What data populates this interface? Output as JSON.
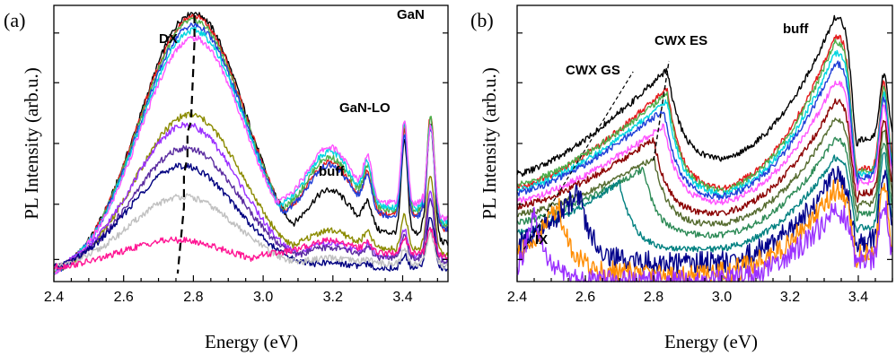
{
  "chart_data": [
    {
      "panel_label": "(a)",
      "type": "line",
      "xlabel": "Energy (eV)",
      "ylabel": "PL Intensity (arb.u.)",
      "yscale": "log",
      "xlim": [
        2.4,
        3.53
      ],
      "xticks": [
        2.4,
        2.6,
        2.8,
        3.0,
        3.2,
        3.4
      ],
      "xtick_labels": [
        "2.4",
        "2.6",
        "2.8",
        "3.0",
        "3.2",
        "3.4"
      ],
      "annotations": [
        "DX",
        "GaN",
        "GaN-LO",
        "buff"
      ],
      "series": [
        {
          "color": "#000000",
          "dx_peak": 2.8,
          "dx_level": 1.0,
          "plateau": 0.18,
          "buff": 0.16,
          "lo": 0.34,
          "gan": 0.44
        },
        {
          "color": "#e41a1c",
          "dx_peak": 2.8,
          "dx_level": 0.985,
          "plateau": 0.245,
          "buff": 0.195,
          "lo": 0.32,
          "gan": 0.42
        },
        {
          "color": "#4daf4a",
          "dx_peak": 2.8,
          "dx_level": 0.97,
          "plateau": 0.26,
          "buff": 0.2,
          "lo": 0.33,
          "gan": 0.4
        },
        {
          "color": "#1f3fd8",
          "dx_peak": 2.8,
          "dx_level": 0.95,
          "plateau": 0.24,
          "buff": 0.19,
          "lo": 0.3,
          "gan": 0.38
        },
        {
          "color": "#00d5e0",
          "dx_peak": 2.8,
          "dx_level": 0.93,
          "plateau": 0.27,
          "buff": 0.21,
          "lo": 0.32,
          "gan": 0.36
        },
        {
          "color": "#ff55ff",
          "dx_peak": 2.8,
          "dx_level": 0.9,
          "plateau": 0.285,
          "buff": 0.21,
          "lo": 0.31,
          "gan": 0.34
        },
        {
          "color": "#8b8b00",
          "dx_peak": 2.79,
          "dx_level": 0.6,
          "plateau": 0.1,
          "buff": 0.07,
          "lo": 0.13,
          "gan": 0.3
        },
        {
          "color": "#9b30ff",
          "dx_peak": 2.78,
          "dx_level": 0.56,
          "plateau": 0.07,
          "buff": 0.05,
          "lo": 0.1,
          "gan": 0.26
        },
        {
          "color": "#5a2ca0",
          "dx_peak": 2.78,
          "dx_level": 0.47,
          "plateau": 0.06,
          "buff": 0.04,
          "lo": 0.08,
          "gan": 0.23
        },
        {
          "color": "#000080",
          "dx_peak": 2.77,
          "dx_level": 0.4,
          "plateau": 0.02,
          "buff": 0.02,
          "lo": 0.05,
          "gan": 0.2
        },
        {
          "color": "#c0c0c0",
          "dx_peak": 2.77,
          "dx_level": 0.28,
          "plateau": 0.03,
          "buff": 0.02,
          "lo": 0.05,
          "gan": 0.12
        },
        {
          "color": "#ff1493",
          "dx_peak": 2.75,
          "dx_level": 0.11,
          "plateau": 0.06,
          "buff": 0.05,
          "lo": 0.06,
          "gan": 0.1
        }
      ]
    },
    {
      "panel_label": "(b)",
      "type": "line",
      "xlabel": "Energy (eV)",
      "ylabel": "PL Intensity (arb.u.)",
      "yscale": "log",
      "xlim": [
        2.4,
        3.5
      ],
      "xticks": [
        2.4,
        2.6,
        2.8,
        3.0,
        3.2,
        3.4
      ],
      "xtick_labels": [
        "2.4",
        "2.6",
        "2.8",
        "3.0",
        "3.2",
        "3.4"
      ],
      "annotations": [
        "CWX ES",
        "CWX GS",
        "buff",
        "IX"
      ],
      "series": [
        {
          "color": "#000000",
          "es_peak": 2.84,
          "es_level": 0.79,
          "base": 0.4,
          "dip": 0.45,
          "buff": 0.98,
          "gan": 0.77
        },
        {
          "color": "#e41a1c",
          "es_peak": 2.84,
          "es_level": 0.72,
          "base": 0.35,
          "dip": 0.34,
          "buff": 0.91,
          "gan": 0.74
        },
        {
          "color": "#4daf4a",
          "es_peak": 2.84,
          "es_level": 0.7,
          "base": 0.36,
          "dip": 0.33,
          "buff": 0.89,
          "gan": 0.72
        },
        {
          "color": "#00d5e0",
          "es_peak": 2.84,
          "es_level": 0.67,
          "base": 0.34,
          "dip": 0.32,
          "buff": 0.85,
          "gan": 0.7
        },
        {
          "color": "#1f3fd8",
          "es_peak": 2.83,
          "es_level": 0.64,
          "base": 0.33,
          "dip": 0.31,
          "buff": 0.81,
          "gan": 0.68
        },
        {
          "color": "#ff55ff",
          "es_peak": 2.83,
          "es_level": 0.58,
          "base": 0.3,
          "dip": 0.29,
          "buff": 0.74,
          "gan": 0.65
        },
        {
          "color": "#8b0000",
          "es_peak": 2.8,
          "es_level": 0.53,
          "base": 0.28,
          "dip": 0.25,
          "buff": 0.67,
          "gan": 0.6
        },
        {
          "color": "#556b2f",
          "es_peak": 2.8,
          "es_level": 0.46,
          "base": 0.25,
          "dip": 0.21,
          "buff": 0.6,
          "gan": 0.57
        },
        {
          "color": "#2e8b57",
          "es_peak": 2.77,
          "es_level": 0.42,
          "base": 0.22,
          "dip": 0.17,
          "buff": 0.53,
          "gan": 0.52
        },
        {
          "color": "#008080",
          "es_peak": 2.7,
          "es_level": 0.37,
          "base": 0.18,
          "dip": 0.12,
          "buff": 0.46,
          "gan": 0.48
        },
        {
          "color": "#00008b",
          "es_peak": 2.58,
          "es_level": 0.33,
          "base": 0.14,
          "dip": 0.07,
          "buff": 0.39,
          "gan": 0.42
        },
        {
          "color": "#ff8c00",
          "es_peak": 2.52,
          "es_level": 0.29,
          "base": 0.1,
          "dip": 0.03,
          "buff": 0.34,
          "gan": 0.36
        },
        {
          "color": "#9b30ff",
          "es_peak": 2.45,
          "es_level": 0.24,
          "base": 0.06,
          "dip": 0.0,
          "buff": 0.26,
          "gan": 0.3
        }
      ]
    }
  ]
}
